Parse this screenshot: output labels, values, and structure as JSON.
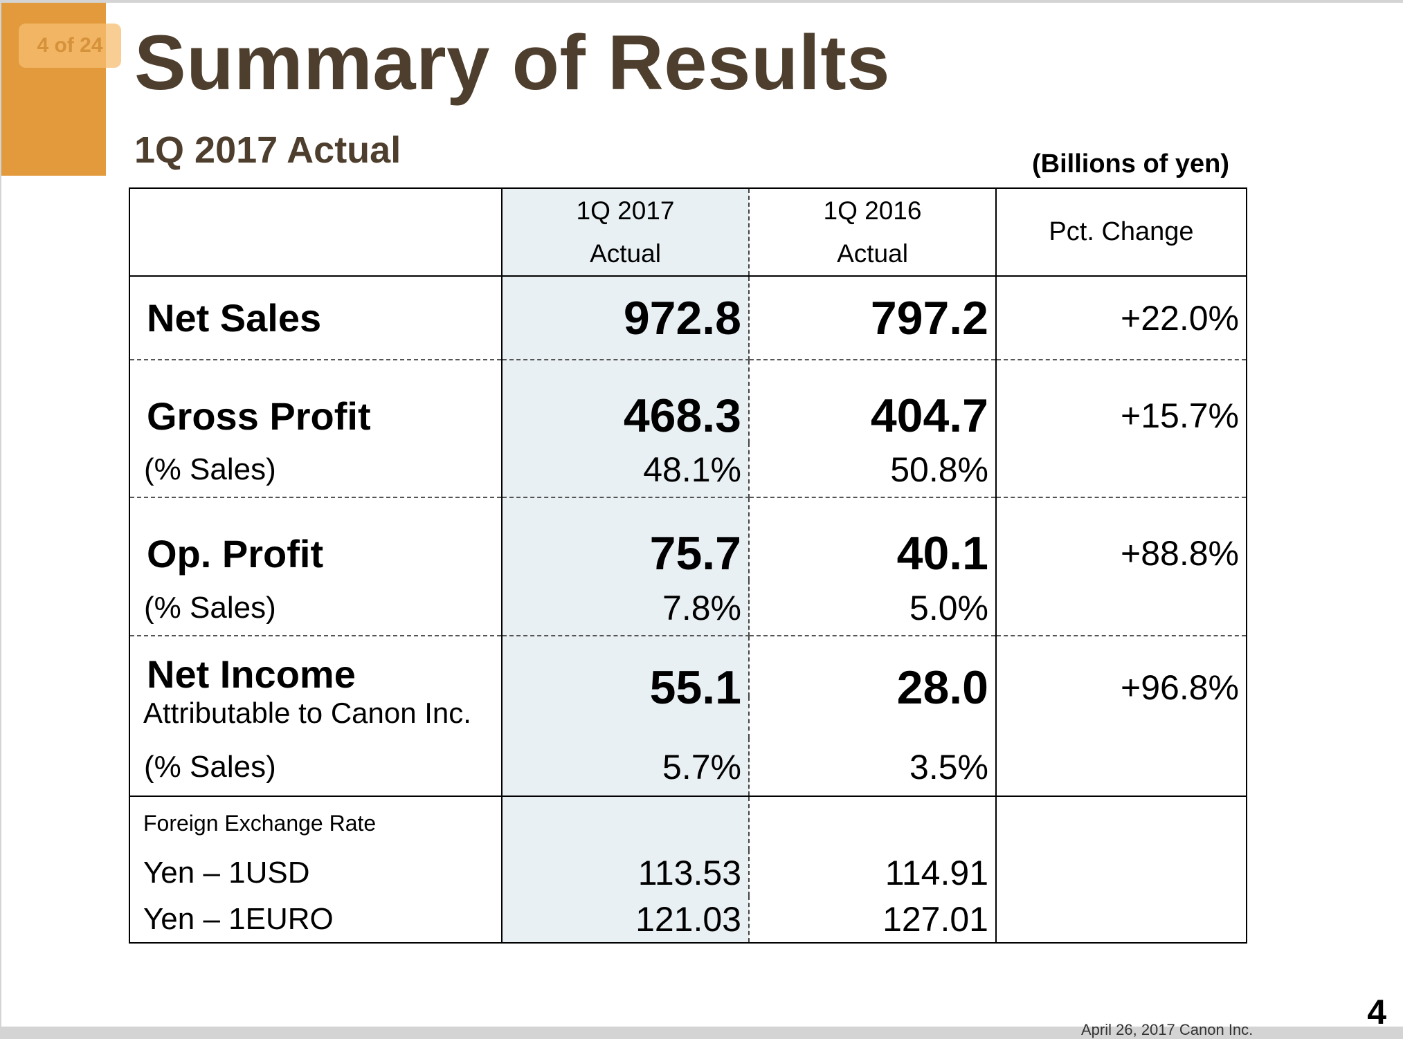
{
  "slide": {
    "page_badge": "4 of 24",
    "title": "Summary of Results",
    "subtitle": "1Q 2017 Actual",
    "unit_note": "(Billions of yen)",
    "page_number": "4",
    "footnote": "April 26, 2017 Canon Inc.",
    "colors": {
      "accent": "#E29A3C",
      "title": "#4E3E2D",
      "shaded_column": "#E9F0F3"
    }
  },
  "table": {
    "columns": [
      {
        "line1": "1Q 2017",
        "line2": "Actual"
      },
      {
        "line1": "1Q 2016",
        "line2": "Actual"
      },
      {
        "label": "Pct.  Change"
      }
    ],
    "net_sales": {
      "label": "Net Sales",
      "q1_2017": "972.8",
      "q1_2016": "797.2",
      "change": "+22.0%"
    },
    "gross_profit": {
      "label": "Gross Profit",
      "q1_2017": "468.3",
      "q1_2016": "404.7",
      "change": "+15.7%",
      "pct_label": "(% Sales)",
      "pct_2017": "48.1%",
      "pct_2016": "50.8%"
    },
    "op_profit": {
      "label": "Op. Profit",
      "q1_2017": "75.7",
      "q1_2016": "40.1",
      "change": "+88.8%",
      "pct_label": "(% Sales)",
      "pct_2017": "7.8%",
      "pct_2016": "5.0%"
    },
    "net_income": {
      "label": "Net Income",
      "sublabel": "Attributable to Canon Inc.",
      "q1_2017": "55.1",
      "q1_2016": "28.0",
      "change": "+96.8%",
      "pct_label": "(% Sales)",
      "pct_2017": "5.7%",
      "pct_2016": "3.5%"
    },
    "fx": {
      "label": "Foreign Exchange Rate",
      "usd_label": "Yen – 1USD",
      "usd_2017": "113.53",
      "usd_2016": "114.91",
      "euro_label": "Yen – 1EURO",
      "euro_2017": "121.03",
      "euro_2016": "127.01"
    }
  }
}
